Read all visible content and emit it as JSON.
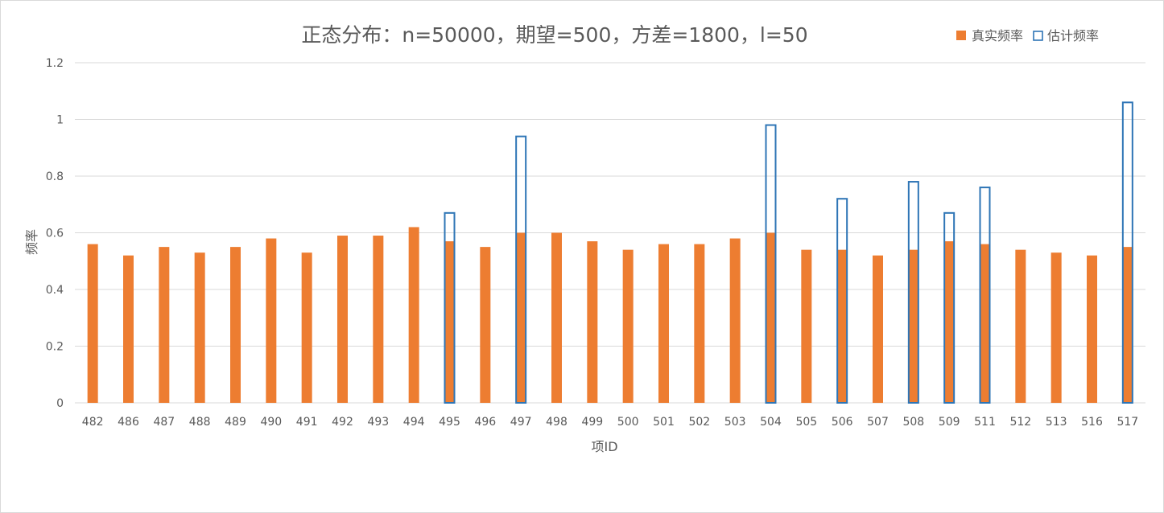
{
  "chart_data": {
    "type": "bar",
    "title": "正态分布：n=50000，期望=500，方差=1800，l=50",
    "xlabel": "项ID",
    "ylabel": "频率",
    "ylim": [
      0,
      1.2
    ],
    "yticks": [
      "0",
      "0.2",
      "0.4",
      "0.6",
      "0.8",
      "1",
      "1.2"
    ],
    "grid": true,
    "legend_position": "top-right",
    "categories": [
      "482",
      "486",
      "487",
      "488",
      "489",
      "490",
      "491",
      "492",
      "493",
      "494",
      "495",
      "496",
      "497",
      "498",
      "499",
      "500",
      "501",
      "502",
      "503",
      "504",
      "505",
      "506",
      "507",
      "508",
      "509",
      "511",
      "512",
      "513",
      "516",
      "517"
    ],
    "series": [
      {
        "name": "真实频率",
        "style": "filled",
        "color": "#ED7D31",
        "values": [
          0.56,
          0.52,
          0.55,
          0.53,
          0.55,
          0.58,
          0.53,
          0.59,
          0.59,
          0.62,
          0.57,
          0.55,
          0.6,
          0.6,
          0.57,
          0.54,
          0.56,
          0.56,
          0.58,
          0.6,
          0.54,
          0.54,
          0.52,
          0.54,
          0.57,
          0.56,
          0.54,
          0.53,
          0.52,
          0.55
        ]
      },
      {
        "name": "估计频率",
        "style": "outline",
        "color": "#2E75B6",
        "values": [
          null,
          null,
          null,
          null,
          null,
          null,
          null,
          null,
          null,
          null,
          0.67,
          null,
          0.94,
          null,
          null,
          null,
          null,
          null,
          null,
          0.98,
          null,
          0.72,
          null,
          0.78,
          0.67,
          0.76,
          null,
          null,
          null,
          1.06
        ]
      }
    ]
  }
}
